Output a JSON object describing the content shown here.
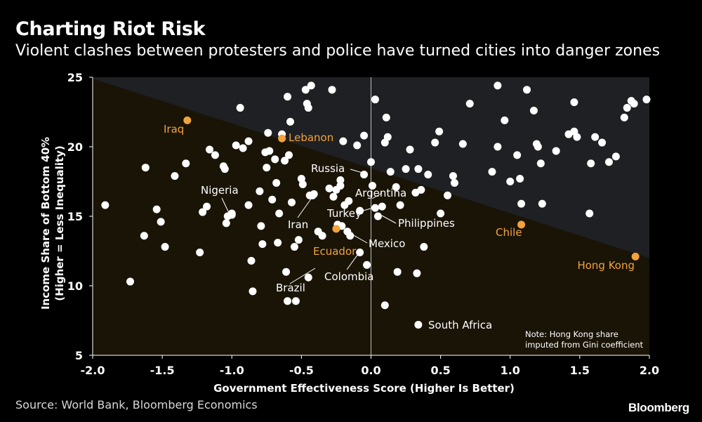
{
  "header": {
    "title": "Charting Riot Risk",
    "subtitle": "Violent clashes between protesters and police have turned cities into danger zones"
  },
  "footer": {
    "source": "Source: World Bank, Bloomberg Economics",
    "brand": "Bloomberg"
  },
  "colors": {
    "background": "#000000",
    "upper_region": "#1e2023",
    "lower_region": "#1a1407",
    "point_default": "#ffffff",
    "point_highlight": "#f2a33a"
  },
  "chart_data": {
    "type": "scatter",
    "xlabel": "Government Effectiveness Score (Higher Is Better)",
    "ylabel_line1": "Income Share of Bottom 40%",
    "ylabel_line2": "(Higher = Less Inequality)",
    "xlim": [
      -2.0,
      2.0
    ],
    "ylim": [
      5,
      25
    ],
    "x_ticks": [
      "-2.0",
      "-1.5",
      "-1.0",
      "-0.5",
      "0.0",
      "0.5",
      "1.0",
      "1.5",
      "2.0"
    ],
    "y_ticks": [
      "5",
      "10",
      "15",
      "20",
      "25"
    ],
    "divider_line": {
      "from": [
        -2.0,
        24.9
      ],
      "to": [
        2.0,
        12.0
      ]
    },
    "vertical_reference_x": 0.0,
    "note_line1": "Note: Hong Kong share",
    "note_line2": "imputed from Gini coefficient",
    "highlighted": [
      {
        "name": "Iraq",
        "x": -1.32,
        "y": 21.9,
        "label_side": "below-left"
      },
      {
        "name": "Lebanon",
        "x": -0.64,
        "y": 20.6,
        "label_side": "right"
      },
      {
        "name": "Ecuador",
        "x": -0.25,
        "y": 14.1,
        "label_side": "below"
      },
      {
        "name": "Chile",
        "x": 1.08,
        "y": 14.4,
        "label_side": "below"
      },
      {
        "name": "Hong Kong",
        "x": 1.9,
        "y": 12.1,
        "label_side": "left"
      }
    ],
    "labeled": [
      {
        "name": "Russia",
        "x": -0.05,
        "y": 18.0,
        "label": "Russia"
      },
      {
        "name": "Nigeria",
        "x": -1.0,
        "y": 15.1,
        "label": "Nigeria"
      },
      {
        "name": "Argentina",
        "x": -0.22,
        "y": 17.6,
        "label": "Argentina"
      },
      {
        "name": "Iran",
        "x": -0.42,
        "y": 16.5,
        "label": "Iran"
      },
      {
        "name": "Turkey",
        "x": 0.03,
        "y": 15.6,
        "label": "Turkey"
      },
      {
        "name": "Philippines",
        "x": 0.05,
        "y": 15.0,
        "label": "Philippines"
      },
      {
        "name": "Mexico",
        "x": -0.15,
        "y": 13.6,
        "label": "Mexico"
      },
      {
        "name": "Colombia",
        "x": -0.08,
        "y": 12.4,
        "label": "Colombia"
      },
      {
        "name": "Brazil",
        "x": -0.6,
        "y": 8.9,
        "label": "Brazil"
      },
      {
        "name": "South Africa",
        "x": 0.34,
        "y": 7.2,
        "label": "South Africa"
      }
    ],
    "points": [
      [
        -1.91,
        15.8
      ],
      [
        -1.73,
        10.3
      ],
      [
        -1.62,
        18.5
      ],
      [
        -1.63,
        13.6
      ],
      [
        -1.54,
        15.5
      ],
      [
        -1.51,
        14.6
      ],
      [
        -1.48,
        12.8
      ],
      [
        -1.41,
        17.9
      ],
      [
        -1.33,
        18.8
      ],
      [
        -1.23,
        12.4
      ],
      [
        -1.21,
        15.3
      ],
      [
        -1.18,
        15.7
      ],
      [
        -1.16,
        19.8
      ],
      [
        -1.12,
        19.4
      ],
      [
        -1.06,
        18.6
      ],
      [
        -1.05,
        18.4
      ],
      [
        -1.04,
        14.5
      ],
      [
        -1.03,
        15.0
      ],
      [
        -1.0,
        15.2
      ],
      [
        -0.97,
        20.1
      ],
      [
        -0.94,
        22.8
      ],
      [
        -0.92,
        19.9
      ],
      [
        -0.88,
        20.4
      ],
      [
        -0.88,
        15.8
      ],
      [
        -0.86,
        11.8
      ],
      [
        -0.85,
        9.6
      ],
      [
        -0.8,
        16.8
      ],
      [
        -0.79,
        14.3
      ],
      [
        -0.78,
        13.0
      ],
      [
        -0.76,
        19.6
      ],
      [
        -0.75,
        18.5
      ],
      [
        -0.74,
        21.0
      ],
      [
        -0.73,
        19.7
      ],
      [
        -0.71,
        16.2
      ],
      [
        -0.69,
        19.1
      ],
      [
        -0.68,
        17.4
      ],
      [
        -0.67,
        13.1
      ],
      [
        -0.66,
        15.2
      ],
      [
        -0.64,
        20.9
      ],
      [
        -0.62,
        19.0
      ],
      [
        -0.61,
        11.0
      ],
      [
        -0.6,
        23.6
      ],
      [
        -0.58,
        21.8
      ],
      [
        -0.59,
        19.4
      ],
      [
        -0.57,
        16.0
      ],
      [
        -0.55,
        12.8
      ],
      [
        -0.54,
        8.9
      ],
      [
        -0.52,
        13.3
      ],
      [
        -0.5,
        17.7
      ],
      [
        -0.49,
        17.3
      ],
      [
        -0.47,
        24.1
      ],
      [
        -0.46,
        23.1
      ],
      [
        -0.45,
        22.8
      ],
      [
        -0.44,
        16.5
      ],
      [
        -0.43,
        24.4
      ],
      [
        -0.41,
        16.6
      ],
      [
        -0.45,
        10.6
      ],
      [
        -0.38,
        13.9
      ],
      [
        -0.35,
        13.6
      ],
      [
        -0.3,
        17.0
      ],
      [
        -0.28,
        24.1
      ],
      [
        -0.27,
        16.4
      ],
      [
        -0.25,
        16.9
      ],
      [
        -0.24,
        14.4
      ],
      [
        -0.22,
        17.2
      ],
      [
        -0.21,
        14.3
      ],
      [
        -0.2,
        20.4
      ],
      [
        -0.19,
        15.8
      ],
      [
        -0.17,
        13.9
      ],
      [
        -0.16,
        16.1
      ],
      [
        -0.1,
        20.1
      ],
      [
        -0.08,
        15.4
      ],
      [
        -0.05,
        20.8
      ],
      [
        -0.03,
        11.5
      ],
      [
        0.0,
        18.9
      ],
      [
        0.01,
        17.2
      ],
      [
        0.03,
        23.4
      ],
      [
        0.08,
        15.7
      ],
      [
        0.1,
        20.3
      ],
      [
        0.11,
        22.1
      ],
      [
        0.12,
        20.7
      ],
      [
        0.1,
        8.6
      ],
      [
        0.14,
        18.2
      ],
      [
        0.18,
        17.1
      ],
      [
        0.19,
        11.0
      ],
      [
        0.21,
        15.8
      ],
      [
        0.25,
        18.4
      ],
      [
        0.28,
        19.8
      ],
      [
        0.32,
        16.7
      ],
      [
        0.34,
        18.4
      ],
      [
        0.36,
        16.9
      ],
      [
        0.33,
        10.9
      ],
      [
        0.38,
        12.8
      ],
      [
        0.41,
        18.0
      ],
      [
        0.46,
        20.3
      ],
      [
        0.49,
        21.1
      ],
      [
        0.5,
        15.2
      ],
      [
        0.55,
        16.5
      ],
      [
        0.59,
        17.9
      ],
      [
        0.6,
        17.4
      ],
      [
        0.66,
        20.2
      ],
      [
        0.71,
        23.1
      ],
      [
        0.87,
        18.2
      ],
      [
        0.91,
        24.4
      ],
      [
        0.91,
        20.0
      ],
      [
        0.96,
        21.9
      ],
      [
        1.0,
        17.5
      ],
      [
        1.05,
        19.4
      ],
      [
        1.07,
        17.7
      ],
      [
        1.08,
        15.9
      ],
      [
        1.12,
        24.1
      ],
      [
        1.17,
        22.6
      ],
      [
        1.19,
        20.2
      ],
      [
        1.2,
        20.0
      ],
      [
        1.22,
        18.8
      ],
      [
        1.23,
        15.9
      ],
      [
        1.33,
        19.7
      ],
      [
        1.42,
        20.9
      ],
      [
        1.46,
        21.1
      ],
      [
        1.46,
        23.2
      ],
      [
        1.48,
        20.7
      ],
      [
        1.57,
        15.2
      ],
      [
        1.58,
        18.8
      ],
      [
        1.61,
        20.7
      ],
      [
        1.66,
        20.3
      ],
      [
        1.71,
        18.9
      ],
      [
        1.76,
        19.3
      ],
      [
        1.82,
        22.1
      ],
      [
        1.84,
        22.8
      ],
      [
        1.87,
        23.3
      ],
      [
        1.89,
        23.1
      ],
      [
        1.98,
        23.4
      ]
    ]
  }
}
